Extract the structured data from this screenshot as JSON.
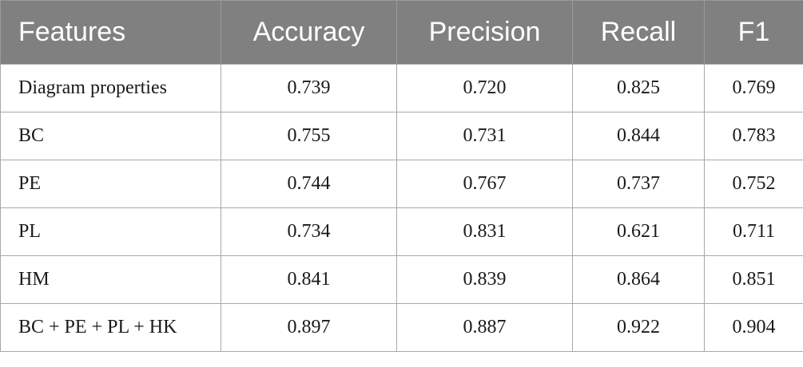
{
  "table": {
    "headers": [
      "Features",
      "Accuracy",
      "Precision",
      "Recall",
      "F1"
    ],
    "rows": [
      [
        "Diagram properties",
        "0.739",
        "0.720",
        "0.825",
        "0.769"
      ],
      [
        "BC",
        "0.755",
        "0.731",
        "0.844",
        "0.783"
      ],
      [
        "PE",
        "0.744",
        "0.767",
        "0.737",
        "0.752"
      ],
      [
        "PL",
        "0.734",
        "0.831",
        "0.621",
        "0.711"
      ],
      [
        "HM",
        "0.841",
        "0.839",
        "0.864",
        "0.851"
      ],
      [
        "BC + PE + PL + HK",
        "0.897",
        "0.887",
        "0.922",
        "0.904"
      ]
    ]
  },
  "colors": {
    "header_background": "#808080",
    "header_text": "#ffffff",
    "grid_line": "#a8a8a8"
  }
}
